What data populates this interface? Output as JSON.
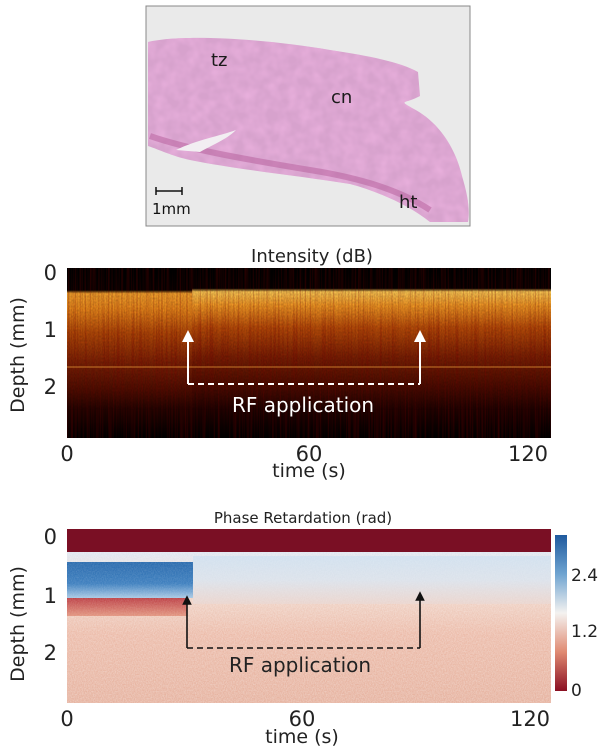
{
  "histology": {
    "labels": [
      "tz",
      "cn",
      "ht"
    ],
    "scalebar_label": "1mm"
  },
  "panel_intensity": {
    "title": "Intensity (dB)",
    "ylabel": "Depth (mm)",
    "xlabel": "time (s)",
    "y_ticks": [
      "0",
      "1",
      "2"
    ],
    "x_ticks": [
      "0",
      "60",
      "120"
    ],
    "annotation": "RF application"
  },
  "panel_phase": {
    "title": "Phase Retardation (rad)",
    "ylabel": "Depth (mm)",
    "xlabel": "time (s)",
    "y_ticks": [
      "0",
      "1",
      "2"
    ],
    "x_ticks": [
      "0",
      "60",
      "120"
    ],
    "annotation": "RF application",
    "colorbar_ticks": [
      "2.4",
      "1.2",
      "0"
    ]
  },
  "chart_data": [
    {
      "type": "heatmap",
      "title": "Intensity (dB)",
      "xlabel": "time (s)",
      "ylabel": "Depth (mm)",
      "xlim": [
        0,
        120
      ],
      "ylim": [
        0,
        2.8
      ],
      "rf_application_interval": [
        30,
        90
      ]
    },
    {
      "type": "heatmap",
      "title": "Phase Retardation (rad)",
      "xlabel": "time (s)",
      "ylabel": "Depth (mm)",
      "xlim": [
        0,
        120
      ],
      "ylim": [
        0,
        2.8
      ],
      "colorbar_range": [
        0,
        2.8
      ],
      "colorbar_ticks": [
        0,
        1.2,
        2.4
      ],
      "rf_application_interval": [
        30,
        90
      ]
    }
  ],
  "colors": {
    "histology_pink": "#d98fc0",
    "intensity_bright": "#f0a030",
    "intensity_dark": "#2a0500",
    "phase_high": "#2b6bb0",
    "phase_low": "#7a0f1e"
  }
}
